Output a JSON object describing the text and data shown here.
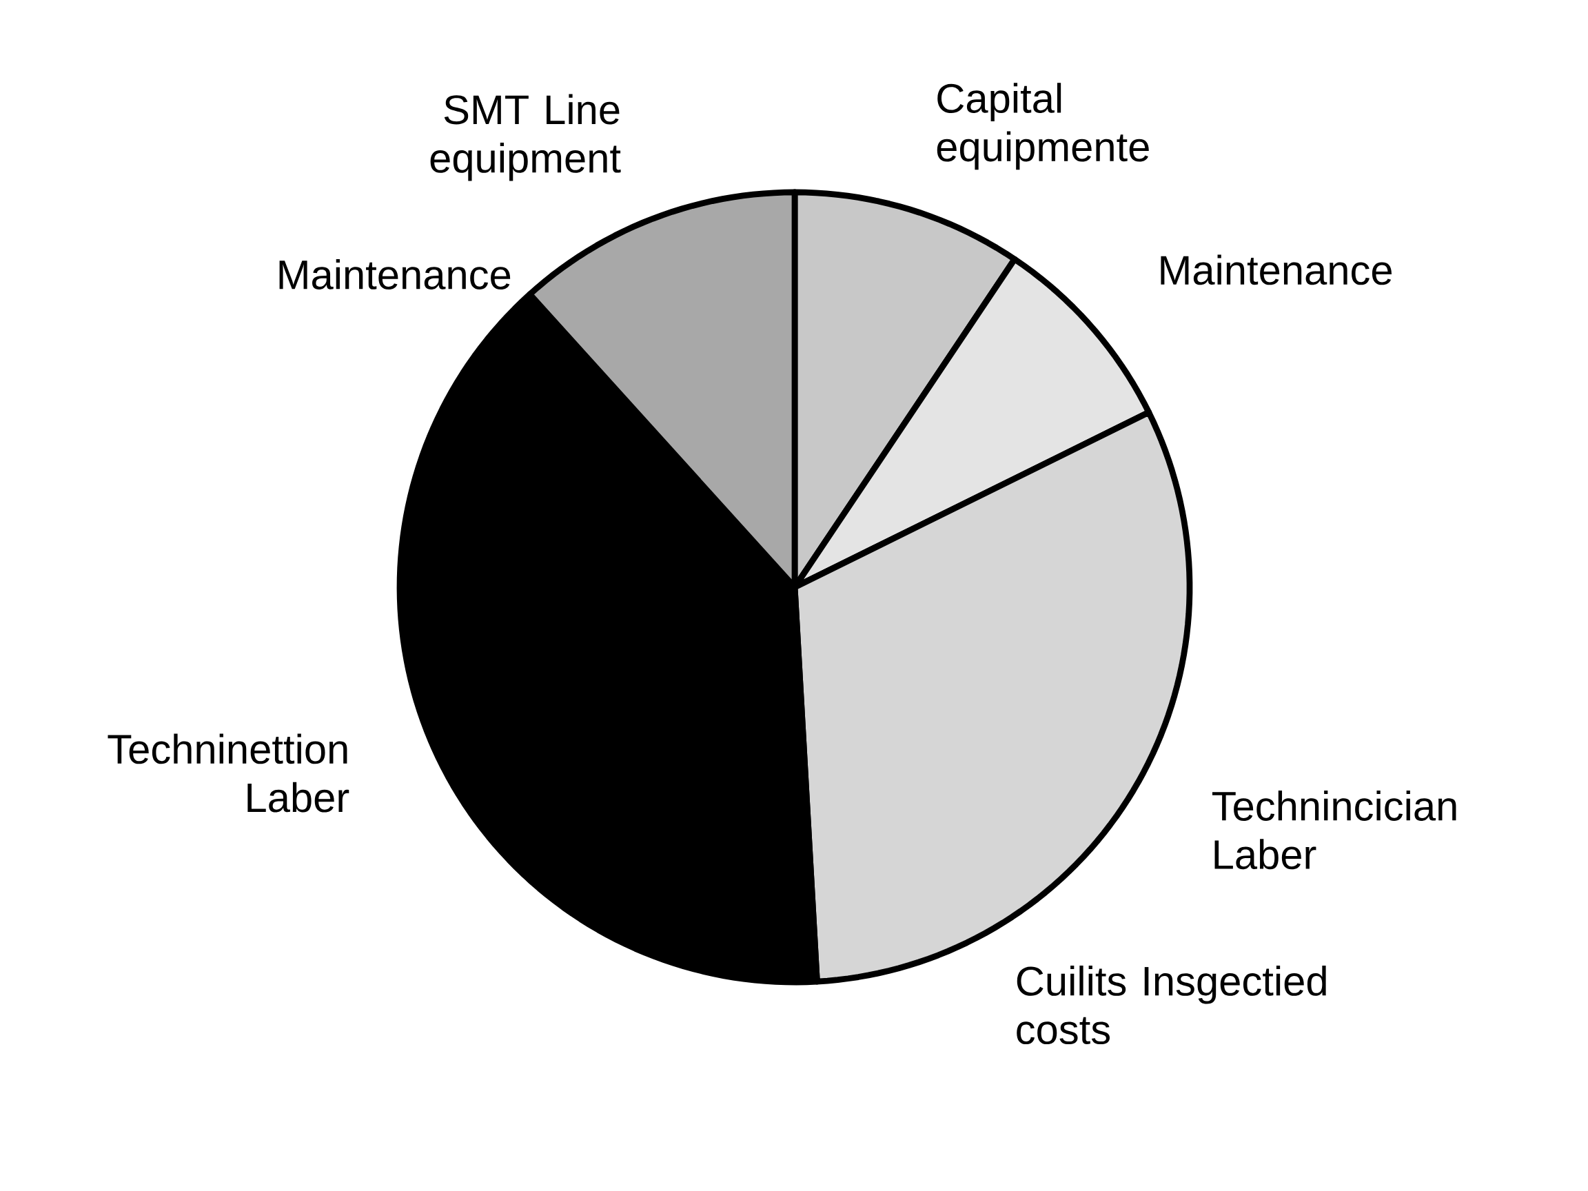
{
  "chart_data": {
    "type": "pie",
    "categories": [
      "Capital equipmente",
      "Maintenance",
      "Technincician Laber",
      "Techninettion Laber",
      "SMT Line equipment"
    ],
    "values": [
      9.4,
      8.3,
      31.4,
      39.2,
      11.7
    ],
    "colors": [
      "#c8c8c8",
      "#e4e4e4",
      "#d6d6d6",
      "#000000",
      "#a8a8a8"
    ],
    "annotations": [
      "Maintenance",
      "Cuilits Insgectied costs"
    ]
  }
}
